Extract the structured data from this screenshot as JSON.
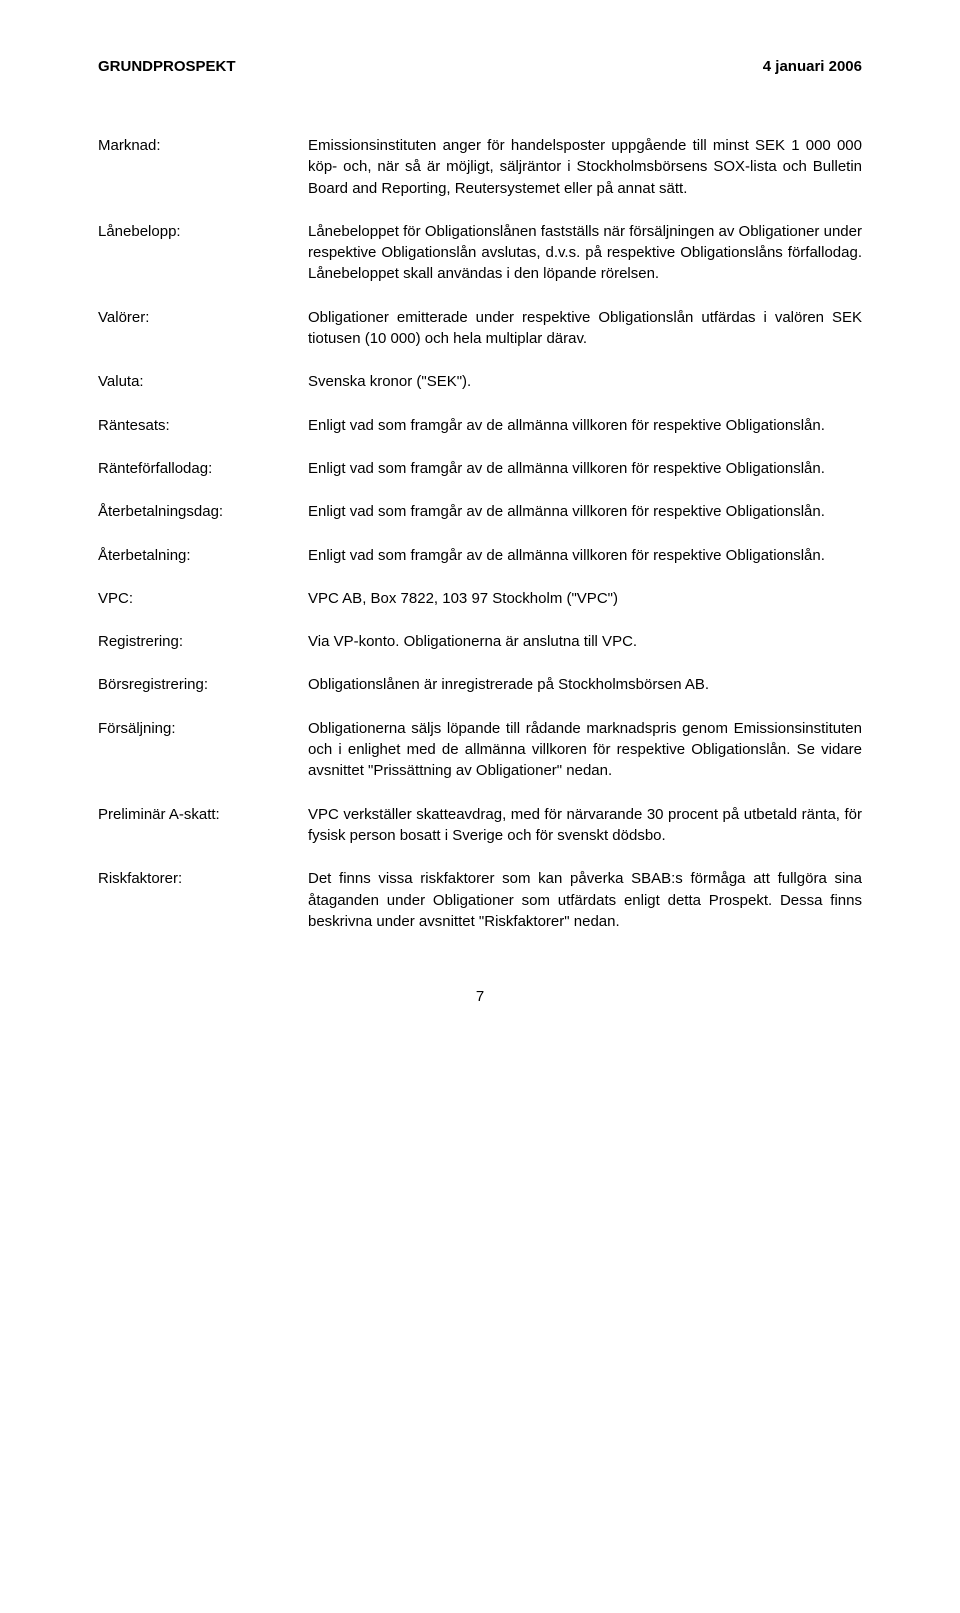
{
  "header": {
    "left": "GRUNDPROSPEKT",
    "right": "4 januari 2006"
  },
  "rows": [
    {
      "term": "Marknad:",
      "desc": "Emissionsinstituten anger för handelsposter uppgående till minst SEK 1 000 000 köp- och, när så är möjligt, säljräntor i Stockholmsbörsens SOX-lista och Bulletin Board and Reporting, Reutersystemet eller på annat sätt."
    },
    {
      "term": "Lånebelopp:",
      "desc": "Lånebeloppet för Obligationslånen fastställs när försäljningen av Obligationer under respektive Obligationslån avslutas, d.v.s. på respektive Obligationslåns förfallodag. Låne­beloppet skall användas i den löpande rörelsen."
    },
    {
      "term": "Valörer:",
      "desc": "Obligationer emitterade under respektive Obligationslån utfärdas i valören SEK tiotusen (10 000) och hela multiplar därav."
    },
    {
      "term": "Valuta:",
      "desc": "Svenska kronor (\"SEK\")."
    },
    {
      "term": "Räntesats:",
      "desc": "Enligt vad som framgår av de allmänna villkoren för respektive Obligationslån."
    },
    {
      "term": "Ränteförfallodag:",
      "desc": "Enligt vad som framgår av de allmänna villkoren för respektive Obligationslån."
    },
    {
      "term": "Återbetalningsdag:",
      "desc": "Enligt vad som framgår av de allmänna villkoren för respektive Obligationslån."
    },
    {
      "term": "Återbetalning:",
      "desc": "Enligt vad som framgår av de allmänna villkoren för respektive Obligationslån."
    },
    {
      "term": "VPC:",
      "desc": "VPC AB, Box 7822, 103 97 Stockholm (\"VPC\")"
    },
    {
      "term": "Registrering:",
      "desc": "Via VP-konto. Obligationerna är anslutna till VPC."
    },
    {
      "term": "Börsregistrering:",
      "desc": "Obligationslånen är inregistrerade på Stockholmsbörsen AB."
    },
    {
      "term": "Försäljning:",
      "desc": "Obligationerna säljs löpande till rådande marknadspris genom Emissionsinstituten och i enlighet med de allmänna villkoren för respektive Obligationslån. Se vidare avsnittet \"Prissättning av Obligationer\" nedan."
    },
    {
      "term": "Preliminär A-skatt:",
      "desc": "VPC verkställer skatteavdrag, med för närvarande 30 procent på utbetald ränta, för fysisk person bosatt i Sverige och för svenskt dödsbo."
    },
    {
      "term": "Riskfaktorer:",
      "desc": "Det finns vissa riskfaktorer som kan påverka SBAB:s förmåga att fullgöra sina åtaganden under Obligationer som utfärdats enligt detta Prospekt. Dessa finns beskrivna under avsnittet \"Riskfaktorer\" nedan."
    }
  ],
  "pageNumber": "7"
}
